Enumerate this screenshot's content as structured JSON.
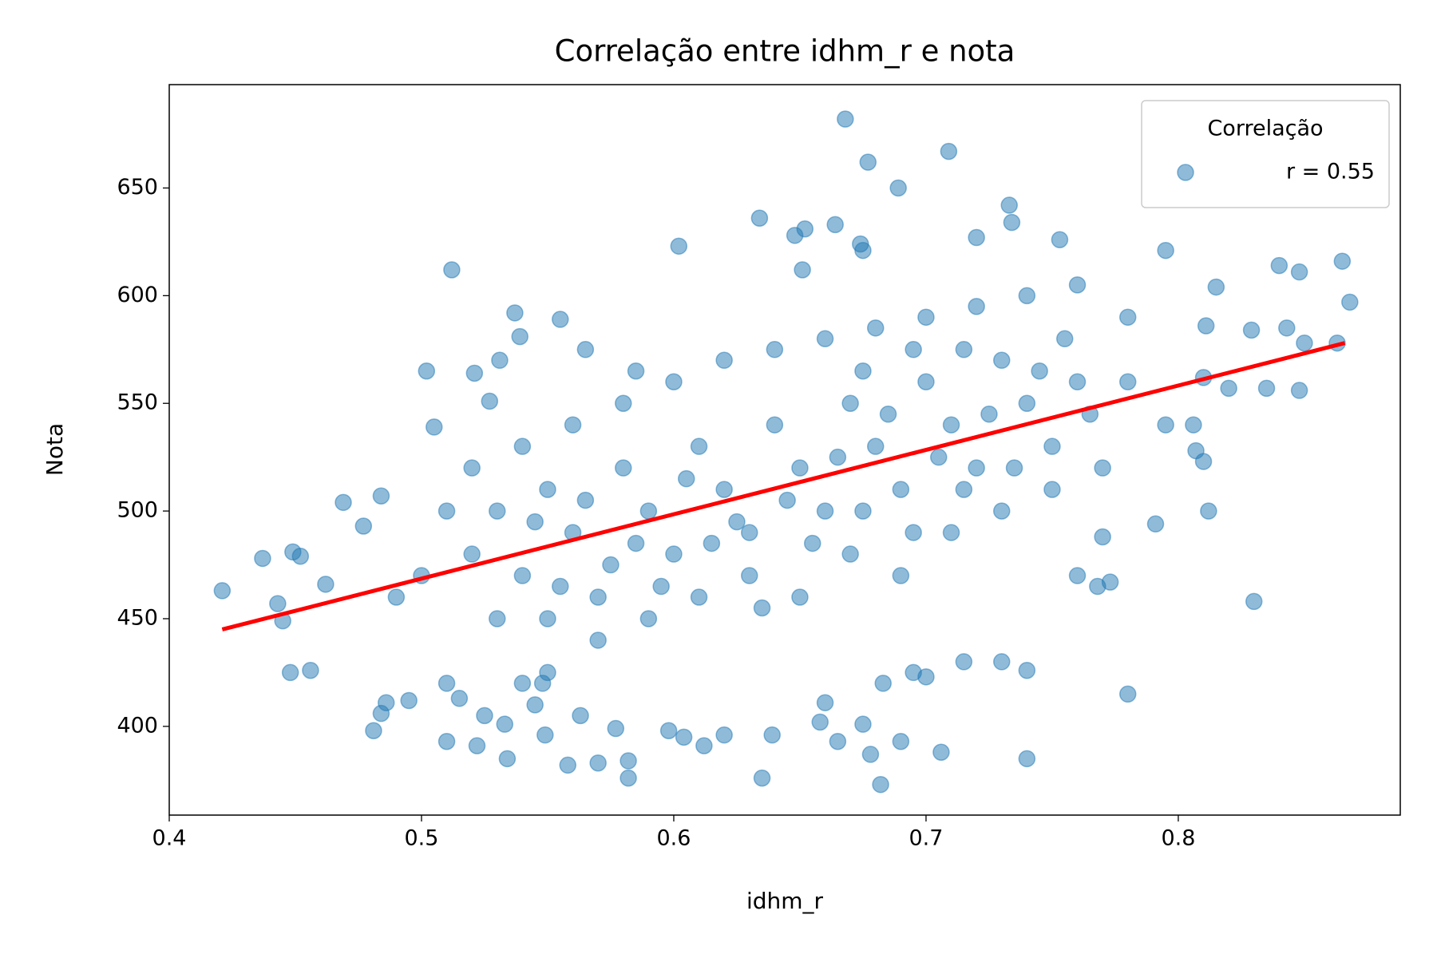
{
  "chart_data": {
    "type": "scatter",
    "title": "Correlação entre idhm_r e nota",
    "x_label": "idhm_r",
    "y_label": "Nota",
    "xlim": [
      0.4,
      0.888
    ],
    "ylim": [
      358.8,
      698
    ],
    "xticks": [
      0.4,
      0.5,
      0.6,
      0.7,
      0.8
    ],
    "yticks": [
      400,
      450,
      500,
      550,
      600,
      650
    ],
    "legend_title": "Correlação",
    "legend_position": "upper right",
    "series": [
      {
        "name": "r = 0.55",
        "color": "#1f77b4",
        "opacity": 0.5,
        "x": [
          0.668,
          0.709,
          0.677,
          0.689,
          0.733,
          0.734,
          0.634,
          0.648,
          0.652,
          0.664,
          0.602,
          0.675,
          0.674,
          0.512,
          0.651,
          0.72,
          0.753,
          0.795,
          0.84,
          0.848,
          0.865,
          0.868,
          0.815,
          0.437,
          0.421,
          0.449,
          0.452,
          0.462,
          0.443,
          0.445,
          0.448,
          0.456,
          0.469,
          0.477,
          0.484,
          0.481,
          0.484,
          0.486,
          0.495,
          0.502,
          0.505,
          0.51,
          0.522,
          0.534,
          0.558,
          0.57,
          0.582,
          0.582,
          0.635,
          0.682,
          0.706,
          0.74,
          0.83,
          0.812,
          0.78,
          0.791,
          0.773,
          0.829,
          0.843,
          0.82,
          0.835,
          0.848,
          0.85,
          0.863,
          0.81,
          0.807,
          0.806,
          0.795,
          0.811,
          0.81,
          0.639,
          0.62,
          0.598,
          0.612,
          0.604,
          0.577,
          0.531,
          0.537,
          0.539,
          0.555,
          0.521,
          0.527,
          0.54,
          0.548,
          0.545,
          0.55,
          0.51,
          0.515,
          0.525,
          0.533,
          0.549,
          0.563,
          0.73,
          0.74,
          0.76,
          0.768,
          0.77,
          0.7,
          0.69,
          0.675,
          0.665,
          0.678,
          0.658,
          0.66,
          0.683,
          0.695,
          0.715,
          0.52,
          0.53,
          0.54,
          0.55,
          0.56,
          0.57,
          0.58,
          0.59,
          0.6,
          0.61,
          0.62,
          0.63,
          0.64,
          0.65,
          0.66,
          0.67,
          0.68,
          0.69,
          0.7,
          0.71,
          0.72,
          0.73,
          0.74,
          0.75,
          0.76,
          0.53,
          0.55,
          0.57,
          0.59,
          0.61,
          0.63,
          0.65,
          0.67,
          0.69,
          0.71,
          0.73,
          0.75,
          0.77,
          0.54,
          0.56,
          0.58,
          0.6,
          0.62,
          0.64,
          0.66,
          0.68,
          0.7,
          0.72,
          0.74,
          0.76,
          0.78,
          0.78,
          0.51,
          0.5,
          0.49,
          0.52,
          0.545,
          0.565,
          0.585,
          0.605,
          0.625,
          0.645,
          0.665,
          0.685,
          0.705,
          0.725,
          0.745,
          0.765,
          0.555,
          0.575,
          0.595,
          0.615,
          0.635,
          0.655,
          0.675,
          0.695,
          0.715,
          0.735,
          0.755,
          0.715,
          0.695,
          0.675,
          0.565,
          0.585
        ],
        "y": [
          682,
          667,
          662,
          650,
          642,
          634,
          636,
          628,
          631,
          633,
          623,
          621,
          624,
          612,
          612,
          627,
          626,
          621,
          614,
          611,
          616,
          597,
          604,
          478,
          463,
          481,
          479,
          466,
          457,
          449,
          425,
          426,
          504,
          493,
          507,
          398,
          406,
          411,
          412,
          565,
          539,
          393,
          391,
          385,
          382,
          383,
          376,
          384,
          376,
          373,
          388,
          385,
          458,
          500,
          415,
          494,
          467,
          584,
          585,
          557,
          557,
          556,
          578,
          578,
          523,
          528,
          540,
          540,
          586,
          562,
          396,
          396,
          398,
          391,
          395,
          399,
          570,
          592,
          581,
          589,
          564,
          551,
          420,
          420,
          410,
          425,
          420,
          413,
          405,
          401,
          396,
          405,
          430,
          426,
          470,
          465,
          488,
          423,
          393,
          401,
          393,
          387,
          402,
          411,
          420,
          425,
          430,
          480,
          500,
          470,
          510,
          490,
          460,
          520,
          500,
          480,
          530,
          510,
          490,
          540,
          520,
          500,
          550,
          530,
          510,
          560,
          540,
          520,
          570,
          550,
          530,
          560,
          450,
          450,
          440,
          450,
          460,
          470,
          460,
          480,
          470,
          490,
          500,
          510,
          520,
          530,
          540,
          550,
          560,
          570,
          575,
          580,
          585,
          590,
          595,
          600,
          605,
          590,
          560,
          500,
          470,
          460,
          520,
          495,
          505,
          485,
          515,
          495,
          505,
          525,
          545,
          525,
          545,
          565,
          545,
          465,
          475,
          465,
          485,
          455,
          485,
          500,
          490,
          510,
          520,
          580,
          575,
          575,
          565,
          575,
          565
        ]
      }
    ],
    "regression_line": {
      "color": "#ff0000",
      "x": [
        0.421,
        0.866
      ],
      "y": [
        445,
        578
      ]
    }
  }
}
